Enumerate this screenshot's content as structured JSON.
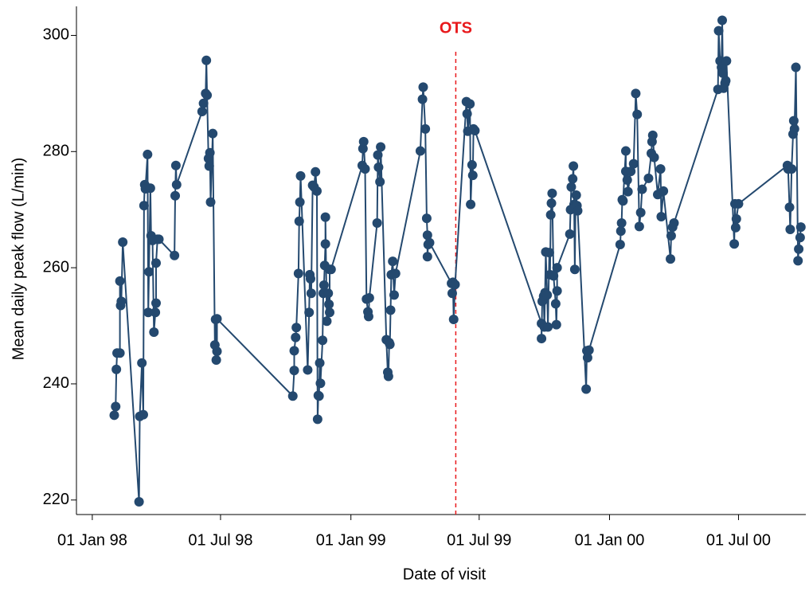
{
  "chart_data": {
    "type": "line",
    "x_label": "Date of visit",
    "y_label": "Mean daily peak flow (L/min)",
    "color": "#24496f",
    "markers": true,
    "x": [
      "1998-02-01",
      "1998-02-03",
      "1998-02-04",
      "1998-02-05",
      "1998-02-09",
      "1998-02-09",
      "1998-02-10",
      "1998-02-11",
      "1998-02-13",
      "1998-03-08",
      "1998-03-09",
      "1998-03-12",
      "1998-03-14",
      "1998-03-15",
      "1998-03-16",
      "1998-03-17",
      "1998-03-20",
      "1998-03-21",
      "1998-03-22",
      "1998-03-24",
      "1998-03-25",
      "1998-03-27",
      "1998-03-29",
      "1998-03-31",
      "1998-04-01",
      "1998-04-01",
      "1998-04-03",
      "1998-04-05",
      "1998-04-27",
      "1998-04-28",
      "1998-04-29",
      "1998-04-30",
      "1998-06-05",
      "1998-06-07",
      "1998-06-10",
      "1998-06-11",
      "1998-06-12",
      "1998-06-14",
      "1998-06-15",
      "1998-06-16",
      "1998-06-17",
      "1998-06-20",
      "1998-06-23",
      "1998-06-24",
      "1998-06-25",
      "1998-06-26",
      "1998-06-26",
      "1998-10-11",
      "1998-10-13",
      "1998-10-13",
      "1998-10-15",
      "1998-10-16",
      "1998-10-19",
      "1998-10-20",
      "1998-10-21",
      "1998-10-22",
      "1998-11-01",
      "1998-11-03",
      "1998-11-04",
      "1998-11-05",
      "1998-11-06",
      "1998-11-08",
      "1998-11-10",
      "1998-11-12",
      "1998-11-14",
      "1998-11-15",
      "1998-11-16",
      "1998-11-17",
      "1998-11-18",
      "1998-11-19",
      "1998-11-22",
      "1998-11-23",
      "1998-11-24",
      "1998-11-25",
      "1998-11-26",
      "1998-11-26",
      "1998-11-28",
      "1998-11-30",
      "1998-12-01",
      "1998-12-02",
      "1998-12-02",
      "1998-12-04",
      "1999-01-17",
      "1999-01-18",
      "1999-01-19",
      "1999-01-21",
      "1999-01-23",
      "1999-01-25",
      "1999-01-26",
      "1999-01-27",
      "1999-02-07",
      "1999-02-08",
      "1999-02-09",
      "1999-02-11",
      "1999-02-12",
      "1999-02-20",
      "1999-02-22",
      "1999-02-23",
      "1999-02-24",
      "1999-02-25",
      "1999-02-26",
      "1999-02-27",
      "1999-03-01",
      "1999-03-03",
      "1999-03-05",
      "1999-04-09",
      "1999-04-12",
      "1999-04-13",
      "1999-04-16",
      "1999-04-18",
      "1999-04-19",
      "1999-04-19",
      "1999-04-20",
      "1999-04-22",
      "1999-05-23",
      "1999-05-24",
      "1999-05-25",
      "1999-05-26",
      "1999-05-28",
      "1999-06-13",
      "1999-06-14",
      "1999-06-15",
      "1999-06-18",
      "1999-06-19",
      "1999-06-21",
      "1999-06-22",
      "1999-06-23",
      "1999-06-25",
      "1999-09-27",
      "1999-09-27",
      "1999-09-28",
      "1999-09-30",
      "1999-10-01",
      "1999-10-02",
      "1999-10-03",
      "1999-10-05",
      "1999-10-06",
      "1999-10-08",
      "1999-10-09",
      "1999-10-10",
      "1999-10-11",
      "1999-10-12",
      "1999-10-14",
      "1999-10-17",
      "1999-10-18",
      "1999-10-19",
      "1999-10-19",
      "1999-11-06",
      "1999-11-07",
      "1999-11-08",
      "1999-11-10",
      "1999-11-11",
      "1999-11-12",
      "1999-11-13",
      "1999-11-14",
      "1999-11-15",
      "1999-11-16",
      "1999-11-17",
      "1999-11-29",
      "1999-11-30",
      "1999-12-01",
      "1999-12-03",
      "2000-01-16",
      "2000-01-17",
      "2000-01-18",
      "2000-01-19",
      "2000-01-20",
      "2000-01-24",
      "2000-01-24",
      "2000-01-26",
      "2000-01-27",
      "2000-01-31",
      "2000-02-04",
      "2000-02-07",
      "2000-02-09",
      "2000-02-12",
      "2000-02-14",
      "2000-02-16",
      "2000-02-25",
      "2000-02-29",
      "2000-03-01",
      "2000-03-02",
      "2000-03-04",
      "2000-03-09",
      "2000-03-13",
      "2000-03-14",
      "2000-03-17",
      "2000-03-27",
      "2000-03-28",
      "2000-03-30",
      "2000-04-01",
      "2000-06-02",
      "2000-06-03",
      "2000-06-05",
      "2000-06-07",
      "2000-06-08",
      "2000-06-09",
      "2000-06-10",
      "2000-06-12",
      "2000-06-13",
      "2000-06-14",
      "2000-06-25",
      "2000-06-26",
      "2000-06-27",
      "2000-06-28",
      "2000-07-01",
      "2000-09-08",
      "2000-09-09",
      "2000-09-11",
      "2000-09-12",
      "2000-09-14",
      "2000-09-16",
      "2000-09-17",
      "2000-09-18",
      "2000-09-20",
      "2000-09-23",
      "2000-09-24",
      "2000-09-26",
      "2000-09-27"
    ],
    "values": [
      234.6,
      236.1,
      242.5,
      245.3,
      245.3,
      257.7,
      253.5,
      254.2,
      264.4,
      219.7,
      234.4,
      243.6,
      234.7,
      270.7,
      274.3,
      273.6,
      279.5,
      252.3,
      259.3,
      273.7,
      265.5,
      264.7,
      248.9,
      252.3,
      253.9,
      260.8,
      264.9,
      264.9,
      262.1,
      272.4,
      277.6,
      274.3,
      286.9,
      288.3,
      290.0,
      295.7,
      289.7,
      278.8,
      277.5,
      279.8,
      271.3,
      283.1,
      246.7,
      251.1,
      244.1,
      245.6,
      251.2,
      237.9,
      242.3,
      245.7,
      248.0,
      249.7,
      259.0,
      268.0,
      271.3,
      275.8,
      242.4,
      252.3,
      258.8,
      258.1,
      255.6,
      274.2,
      273.9,
      276.5,
      273.2,
      233.9,
      238.0,
      237.9,
      243.6,
      240.1,
      247.5,
      255.6,
      257.0,
      260.4,
      264.1,
      268.7,
      250.8,
      255.6,
      253.7,
      252.3,
      259.7,
      259.7,
      277.6,
      280.5,
      281.7,
      277.0,
      254.6,
      252.4,
      251.6,
      254.8,
      267.7,
      279.4,
      277.3,
      274.8,
      280.8,
      247.6,
      242.0,
      241.3,
      247.1,
      246.8,
      252.7,
      258.8,
      261.1,
      255.3,
      259.0,
      280.1,
      289.0,
      291.1,
      283.9,
      268.5,
      265.6,
      261.9,
      264.0,
      264.3,
      257.3,
      255.6,
      257.5,
      251.1,
      257.1,
      288.6,
      286.5,
      283.5,
      288.2,
      270.9,
      277.7,
      275.9,
      283.9,
      283.6,
      250.4,
      247.8,
      254.2,
      255.1,
      249.8,
      255.7,
      262.7,
      255.3,
      249.8,
      262.6,
      258.8,
      269.1,
      271.1,
      272.8,
      258.6,
      253.8,
      250.2,
      256.0,
      260.0,
      265.8,
      270.0,
      273.9,
      275.3,
      277.5,
      270.9,
      259.7,
      270.5,
      272.5,
      270.7,
      269.8,
      239.1,
      245.7,
      244.5,
      245.8,
      264.0,
      266.3,
      267.7,
      271.7,
      271.5,
      280.1,
      276.6,
      275.1,
      273.1,
      276.6,
      277.9,
      290.0,
      286.4,
      267.1,
      269.5,
      273.5,
      275.4,
      279.7,
      281.7,
      282.8,
      279.0,
      272.6,
      277.0,
      268.8,
      273.2,
      261.5,
      265.5,
      267.0,
      267.7,
      290.7,
      300.8,
      295.6,
      294.5,
      302.6,
      293.5,
      290.9,
      291.8,
      292.2,
      295.6,
      264.1,
      271.0,
      266.9,
      268.4,
      271.0,
      277.6,
      277.0,
      270.4,
      266.6,
      277.0,
      283.0,
      285.3,
      283.9,
      294.5,
      261.2,
      263.2,
      265.2,
      267.0
    ],
    "xlim": [
      "1997-12-22",
      "2000-10-04"
    ],
    "xticks": [
      {
        "value": "1998-01-01",
        "label": "01 Jan 98"
      },
      {
        "value": "1998-07-01",
        "label": "01 Jul 98"
      },
      {
        "value": "1999-01-01",
        "label": "01 Jan 99"
      },
      {
        "value": "1999-07-01",
        "label": "01 Jul 99"
      },
      {
        "value": "2000-01-01",
        "label": "01 Jan 00"
      },
      {
        "value": "2000-07-01",
        "label": "01 Jul 00"
      }
    ],
    "ylim": [
      217.5,
      305
    ],
    "yticks": [
      220,
      240,
      260,
      280,
      300
    ],
    "grid": false,
    "annotations": [
      {
        "text": "OTS",
        "x": "1999-05-29",
        "color": "#e8191c"
      }
    ]
  }
}
